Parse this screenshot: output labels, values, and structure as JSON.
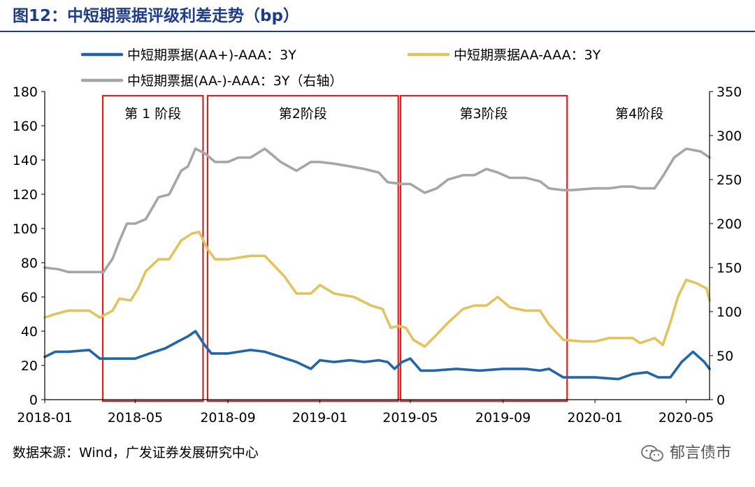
{
  "header": {
    "title": "图12：中短期票据评级利差走势（bp）"
  },
  "footer": {
    "source": "数据来源：Wind，广发证券发展研究中心",
    "watermark": "郁言债市"
  },
  "colors": {
    "title": "#1f3c88",
    "series1": "#2266a8",
    "series2": "#e2c45e",
    "series3": "#a6a6a6",
    "phase_box": "#e02020"
  },
  "chart_data": {
    "type": "line",
    "title": "中短期票据评级利差走势（bp）",
    "x_ticks": [
      "2018-01",
      "2018-05",
      "2018-09",
      "2019-01",
      "2019-05",
      "2019-09",
      "2020-01",
      "2020-05"
    ],
    "x_range": [
      "2018-01",
      "2020-06"
    ],
    "y_left": {
      "min": 0,
      "max": 180,
      "ticks": [
        0,
        20,
        40,
        60,
        80,
        100,
        120,
        140,
        160,
        180
      ]
    },
    "y_right": {
      "min": 0,
      "max": 350,
      "ticks": [
        0,
        50,
        100,
        150,
        200,
        250,
        300,
        350
      ]
    },
    "legend": [
      {
        "name": "中短期票据(AA+)-AAA：3Y",
        "series_index": 0
      },
      {
        "name": "中短期票据AA-AAA：3Y",
        "series_index": 1
      },
      {
        "name": "中短期票据(AA-)-AAA：3Y（右轴）",
        "series_index": 2
      }
    ],
    "phases": [
      {
        "label": "第 1 阶段",
        "start": "2018-03-19",
        "end": "2018-07-30",
        "boxed": true
      },
      {
        "label": "第2阶段",
        "start": "2018-08-05",
        "end": "2019-04-15",
        "boxed": true
      },
      {
        "label": "第3阶段",
        "start": "2019-04-18",
        "end": "2019-11-25",
        "boxed": true
      },
      {
        "label": "第4阶段",
        "start": "2019-11-28",
        "end": "2020-06-01",
        "boxed": false
      }
    ],
    "series": [
      {
        "name": "中短期票据(AA+)-AAA：3Y",
        "axis": "left",
        "x": [
          "2018-01-01",
          "2018-01-15",
          "2018-02-01",
          "2018-03-01",
          "2018-03-15",
          "2018-04-15",
          "2018-05-01",
          "2018-05-20",
          "2018-06-10",
          "2018-07-01",
          "2018-07-10",
          "2018-07-20",
          "2018-08-01",
          "2018-08-10",
          "2018-09-01",
          "2018-10-01",
          "2018-10-20",
          "2018-11-10",
          "2018-12-01",
          "2018-12-20",
          "2019-01-01",
          "2019-01-20",
          "2019-02-10",
          "2019-03-01",
          "2019-03-20",
          "2019-04-01",
          "2019-04-10",
          "2019-04-20",
          "2019-05-01",
          "2019-05-15",
          "2019-06-01",
          "2019-07-01",
          "2019-08-01",
          "2019-09-01",
          "2019-10-01",
          "2019-10-20",
          "2019-11-01",
          "2019-11-20",
          "2019-12-01",
          "2020-01-01",
          "2020-02-01",
          "2020-02-20",
          "2020-03-10",
          "2020-03-25",
          "2020-04-10",
          "2020-04-25",
          "2020-05-10",
          "2020-05-25",
          "2020-06-01"
        ],
        "values": [
          25,
          28,
          28,
          29,
          24,
          24,
          24,
          27,
          30,
          35,
          37,
          40,
          32,
          27,
          27,
          29,
          28,
          25,
          22,
          18,
          23,
          22,
          23,
          22,
          23,
          22,
          18,
          22,
          24,
          17,
          17,
          18,
          17,
          18,
          18,
          17,
          18,
          13,
          13,
          13,
          12,
          15,
          16,
          13,
          13,
          22,
          28,
          22,
          18
        ]
      },
      {
        "name": "中短期票据AA-AAA：3Y",
        "axis": "left",
        "x": [
          "2018-01-01",
          "2018-01-15",
          "2018-02-01",
          "2018-03-01",
          "2018-03-15",
          "2018-04-01",
          "2018-04-10",
          "2018-04-25",
          "2018-05-05",
          "2018-05-15",
          "2018-06-01",
          "2018-06-15",
          "2018-07-01",
          "2018-07-15",
          "2018-07-25",
          "2018-08-05",
          "2018-08-15",
          "2018-09-01",
          "2018-10-01",
          "2018-10-20",
          "2018-11-15",
          "2018-12-01",
          "2018-12-20",
          "2019-01-01",
          "2019-01-20",
          "2019-02-15",
          "2019-03-10",
          "2019-03-25",
          "2019-04-05",
          "2019-04-15",
          "2019-04-25",
          "2019-05-05",
          "2019-05-20",
          "2019-06-05",
          "2019-06-20",
          "2019-07-10",
          "2019-07-25",
          "2019-08-10",
          "2019-08-25",
          "2019-09-10",
          "2019-10-01",
          "2019-10-20",
          "2019-11-01",
          "2019-11-20",
          "2019-12-15",
          "2020-01-01",
          "2020-01-20",
          "2020-02-05",
          "2020-02-20",
          "2020-03-01",
          "2020-03-20",
          "2020-03-31",
          "2020-04-10",
          "2020-04-20",
          "2020-05-01",
          "2020-05-15",
          "2020-05-28",
          "2020-06-01"
        ],
        "values": [
          48,
          50,
          52,
          52,
          48,
          52,
          59,
          58,
          65,
          75,
          82,
          82,
          93,
          97,
          98,
          88,
          82,
          82,
          84,
          84,
          72,
          62,
          62,
          67,
          62,
          60,
          55,
          53,
          42,
          43,
          42,
          35,
          31,
          38,
          45,
          53,
          55,
          55,
          60,
          54,
          52,
          52,
          44,
          35,
          34,
          34,
          36,
          36,
          36,
          33,
          36,
          32,
          45,
          60,
          70,
          68,
          65,
          58
        ]
      },
      {
        "name": "中短期票据(AA-)-AAA：3Y（右轴）",
        "axis": "right",
        "x": [
          "2018-01-01",
          "2018-01-20",
          "2018-02-01",
          "2018-03-01",
          "2018-03-20",
          "2018-04-01",
          "2018-04-10",
          "2018-04-20",
          "2018-05-01",
          "2018-05-15",
          "2018-06-01",
          "2018-06-15",
          "2018-07-01",
          "2018-07-10",
          "2018-07-20",
          "2018-08-01",
          "2018-08-15",
          "2018-09-01",
          "2018-09-15",
          "2018-10-01",
          "2018-10-20",
          "2018-11-10",
          "2018-12-01",
          "2018-12-20",
          "2019-01-01",
          "2019-01-20",
          "2019-02-10",
          "2019-03-01",
          "2019-03-20",
          "2019-04-01",
          "2019-04-20",
          "2019-05-01",
          "2019-05-20",
          "2019-06-05",
          "2019-06-20",
          "2019-07-10",
          "2019-07-25",
          "2019-08-10",
          "2019-08-25",
          "2019-09-10",
          "2019-10-01",
          "2019-10-20",
          "2019-11-01",
          "2019-11-20",
          "2019-12-01",
          "2020-01-01",
          "2020-01-20",
          "2020-02-05",
          "2020-02-20",
          "2020-03-01",
          "2020-03-20",
          "2020-04-01",
          "2020-04-15",
          "2020-05-01",
          "2020-05-20",
          "2020-06-01"
        ],
        "values": [
          150,
          148,
          145,
          145,
          145,
          160,
          180,
          200,
          200,
          205,
          230,
          233,
          260,
          265,
          285,
          280,
          270,
          270,
          275,
          275,
          285,
          270,
          260,
          270,
          270,
          268,
          265,
          262,
          258,
          247,
          245,
          245,
          235,
          240,
          250,
          255,
          255,
          262,
          258,
          252,
          252,
          248,
          240,
          238,
          238,
          240,
          240,
          242,
          242,
          240,
          240,
          255,
          275,
          285,
          282,
          275
        ]
      }
    ]
  }
}
